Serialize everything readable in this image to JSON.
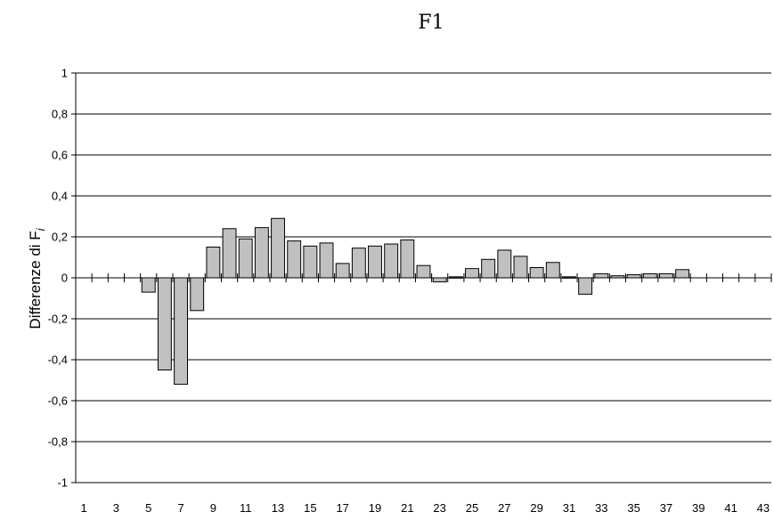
{
  "chart_data": {
    "type": "bar",
    "title": "F1",
    "ylabel": "Differenze di F",
    "ylabel_subscript": "i",
    "xlabel": "",
    "ylim": [
      -1,
      1
    ],
    "y_ticks": [
      1,
      0.8,
      0.6,
      0.4,
      0.2,
      0,
      -0.2,
      -0.4,
      -0.6,
      -0.8,
      -1
    ],
    "y_tick_labels": [
      "1",
      "0,8",
      "0,6",
      "0,4",
      "0,2",
      "0",
      "-0,2",
      "-0,4",
      "-0,6",
      "-0,8",
      "-1"
    ],
    "x_tick_labels": [
      "1",
      "3",
      "5",
      "7",
      "9",
      "11",
      "13",
      "15",
      "17",
      "19",
      "21",
      "23",
      "25",
      "27",
      "29",
      "31",
      "33",
      "35",
      "37",
      "39",
      "41",
      "43"
    ],
    "categories": [
      "1",
      "2",
      "3",
      "4",
      "5",
      "6",
      "7",
      "8",
      "9",
      "10",
      "11",
      "12",
      "13",
      "14",
      "15",
      "16",
      "17",
      "18",
      "19",
      "20",
      "21",
      "22",
      "23",
      "24",
      "25",
      "26",
      "27",
      "28",
      "29",
      "30",
      "31",
      "32",
      "33",
      "34",
      "35",
      "36",
      "37",
      "38",
      "39",
      "40",
      "41",
      "42",
      "43"
    ],
    "values": [
      0,
      0,
      0,
      0,
      -0.07,
      -0.45,
      -0.52,
      -0.16,
      0.15,
      0.24,
      0.19,
      0.245,
      0.29,
      0.18,
      0.155,
      0.17,
      0.07,
      0.145,
      0.155,
      0.165,
      0.185,
      0.06,
      -0.02,
      0.005,
      0.045,
      0.09,
      0.135,
      0.105,
      0.05,
      0.075,
      0.005,
      -0.08,
      0.02,
      0.01,
      0.015,
      0.02,
      0.02,
      0.04,
      0,
      0,
      0,
      0,
      0
    ],
    "grid": true,
    "bar_color": "#c0c0c0",
    "bar_edge_color": "#000000"
  }
}
